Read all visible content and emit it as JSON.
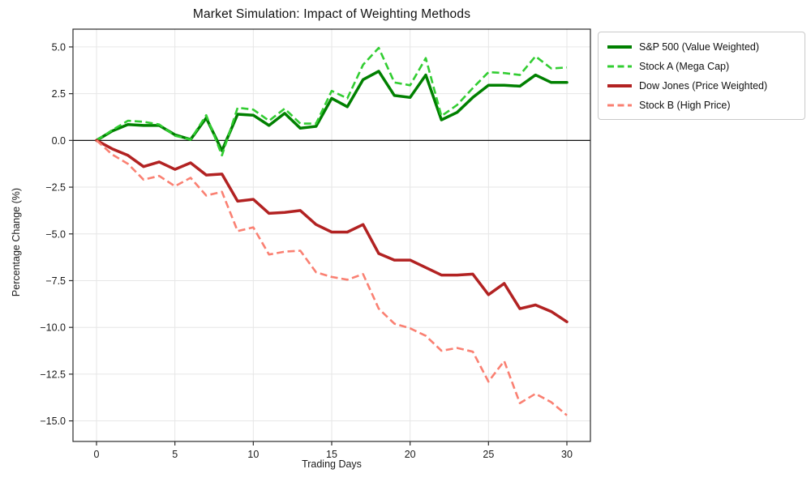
{
  "figure_title": "Market Simulation: Impact of Weighting Methods",
  "chart_data": {
    "type": "line",
    "title": "Market Simulation: Impact of Weighting Methods",
    "xlabel": "Trading Days",
    "ylabel": "Percentage Change (%)",
    "xlim": [
      -1.5,
      31.5
    ],
    "ylim": [
      -16.1,
      5.95
    ],
    "xticks": [
      0,
      5,
      10,
      15,
      20,
      25,
      30
    ],
    "yticks": [
      5.0,
      2.5,
      0.0,
      -2.5,
      -5.0,
      -7.5,
      -10.0,
      -12.5,
      -15.0
    ],
    "grid": true,
    "grid_color": "#e6e6e6",
    "zero_line": true,
    "zero_line_color": "#111111",
    "frame_color": "#2b2b2b",
    "legend_position": "outside-top-right",
    "x": [
      0,
      1,
      2,
      3,
      4,
      5,
      6,
      7,
      8,
      9,
      10,
      11,
      12,
      13,
      14,
      15,
      16,
      17,
      18,
      19,
      20,
      21,
      22,
      23,
      24,
      25,
      26,
      27,
      28,
      29,
      30
    ],
    "series": [
      {
        "name": "S&P 500 (Value Weighted)",
        "color": "#008000",
        "style": "solid",
        "line_width": 3.5,
        "values": [
          0,
          0.5,
          0.85,
          0.8,
          0.8,
          0.3,
          0.05,
          1.2,
          -0.55,
          1.4,
          1.35,
          0.8,
          1.45,
          0.65,
          0.75,
          2.25,
          1.8,
          3.25,
          3.7,
          2.4,
          2.3,
          3.5,
          1.1,
          1.5,
          2.3,
          2.95,
          2.95,
          2.9,
          3.5,
          3.1,
          3.1
        ]
      },
      {
        "name": "Stock A (Mega Cap)",
        "color": "#32cd32",
        "style": "dashed",
        "line_width": 2.6,
        "values": [
          0,
          0.55,
          1.05,
          1.0,
          0.85,
          0.25,
          0.05,
          1.35,
          -0.8,
          1.75,
          1.65,
          1.05,
          1.7,
          0.9,
          0.9,
          2.65,
          2.25,
          4.05,
          4.95,
          3.1,
          2.95,
          4.4,
          1.3,
          1.9,
          2.8,
          3.65,
          3.6,
          3.5,
          4.5,
          3.85,
          3.9
        ]
      },
      {
        "name": "Dow Jones (Price Weighted)",
        "color": "#b22222",
        "style": "solid",
        "line_width": 3.5,
        "values": [
          0,
          -0.45,
          -0.8,
          -1.4,
          -1.15,
          -1.55,
          -1.2,
          -1.85,
          -1.8,
          -3.25,
          -3.15,
          -3.9,
          -3.85,
          -3.75,
          -4.5,
          -4.9,
          -4.9,
          -4.5,
          -6.05,
          -6.4,
          -6.4,
          -6.8,
          -7.2,
          -7.2,
          -7.15,
          -8.25,
          -7.65,
          -9.0,
          -8.8,
          -9.15,
          -9.7
        ]
      },
      {
        "name": "Stock B (High Price)",
        "color": "#fa8072",
        "style": "dashed",
        "line_width": 2.6,
        "values": [
          0,
          -0.75,
          -1.25,
          -2.1,
          -1.9,
          -2.45,
          -2.0,
          -2.95,
          -2.75,
          -4.85,
          -4.65,
          -6.1,
          -5.95,
          -5.9,
          -7.05,
          -7.3,
          -7.45,
          -7.15,
          -9.0,
          -9.8,
          -10.05,
          -10.45,
          -11.25,
          -11.1,
          -11.3,
          -12.9,
          -11.8,
          -14.05,
          -13.55,
          -14.0,
          -14.7
        ]
      }
    ]
  }
}
